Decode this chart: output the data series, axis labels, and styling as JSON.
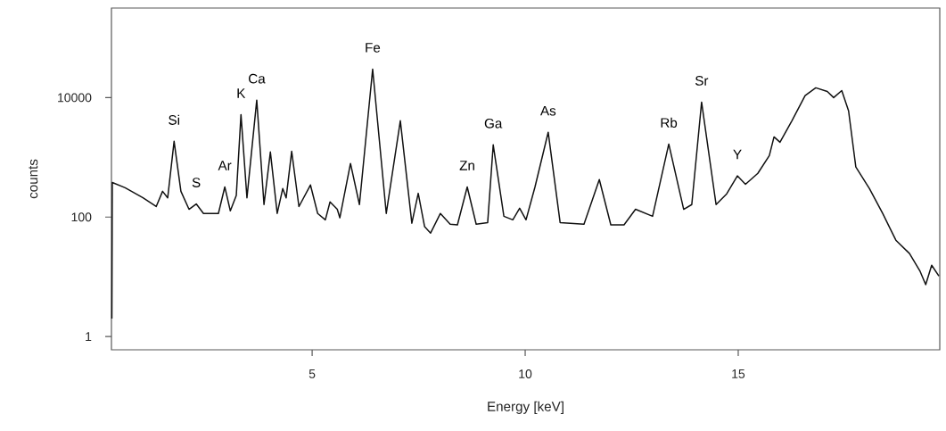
{
  "chart_data": {
    "type": "line",
    "xlabel": "Energy [keV]",
    "ylabel": "counts",
    "color": "#111111",
    "log": "y",
    "xlim": [
      0.29,
      19.73
    ],
    "ylim": [
      0.6,
      316000
    ],
    "xticks": [
      5,
      10,
      15
    ],
    "yticks": [
      1,
      100,
      10000
    ],
    "x": [
      0.3,
      0.31,
      0.61,
      1.03,
      1.34,
      1.49,
      1.61,
      1.76,
      1.92,
      2.11,
      2.28,
      2.45,
      2.8,
      2.95,
      3.08,
      3.22,
      3.33,
      3.47,
      3.7,
      3.87,
      4.02,
      4.18,
      4.31,
      4.39,
      4.52,
      4.69,
      4.96,
      5.13,
      5.31,
      5.42,
      5.59,
      5.65,
      5.9,
      6.11,
      6.42,
      6.74,
      7.07,
      7.34,
      7.49,
      7.64,
      7.78,
      8.01,
      8.24,
      8.41,
      8.64,
      8.85,
      9.12,
      9.25,
      9.5,
      9.71,
      9.87,
      10.02,
      10.23,
      10.54,
      10.82,
      11.38,
      11.74,
      12.01,
      12.32,
      12.59,
      12.99,
      13.37,
      13.72,
      13.91,
      14.14,
      14.48,
      14.73,
      14.98,
      15.17,
      15.46,
      15.73,
      15.84,
      15.98,
      16.26,
      16.57,
      16.82,
      17.09,
      17.24,
      17.43,
      17.59,
      17.76,
      18.08,
      18.39,
      18.7,
      19.02,
      19.27,
      19.4,
      19.54,
      19.71
    ],
    "values": [
      2,
      380,
      310,
      210,
      150,
      270,
      210,
      1860,
      270,
      135,
      166,
      115,
      115,
      320,
      127,
      230,
      5200,
      210,
      9100,
      162,
      1230,
      115,
      300,
      210,
      1260,
      150,
      345,
      115,
      90,
      180,
      135,
      97,
      790,
      162,
      30000,
      115,
      4100,
      79,
      250,
      69,
      54,
      115,
      76,
      74,
      320,
      76,
      81,
      1620,
      103,
      90,
      141,
      90,
      320,
      2630,
      81,
      76,
      425,
      74,
      74,
      135,
      103,
      1670,
      135,
      162,
      8400,
      162,
      245,
      490,
      355,
      540,
      1070,
      2200,
      1790,
      4100,
      10800,
      14600,
      12700,
      10000,
      13100,
      6000,
      690,
      300,
      115,
      41,
      24.5,
      12.3,
      7.4,
      15.6,
      10.3
    ],
    "annotations": [
      {
        "text": "Si",
        "x": 1.76,
        "y": 1860
      },
      {
        "text": "S",
        "x": 2.28,
        "y": 166
      },
      {
        "text": "Ar",
        "x": 2.95,
        "y": 320
      },
      {
        "text": "K",
        "x": 3.33,
        "y": 5200
      },
      {
        "text": "Ca",
        "x": 3.7,
        "y": 9100
      },
      {
        "text": "Fe",
        "x": 6.42,
        "y": 30000
      },
      {
        "text": "Zn",
        "x": 8.64,
        "y": 320
      },
      {
        "text": "Ga",
        "x": 9.25,
        "y": 1620
      },
      {
        "text": "As",
        "x": 10.54,
        "y": 2630
      },
      {
        "text": "Rb",
        "x": 13.37,
        "y": 1670
      },
      {
        "text": "Sr",
        "x": 14.14,
        "y": 8400
      },
      {
        "text": "Y",
        "x": 14.98,
        "y": 490
      }
    ]
  }
}
